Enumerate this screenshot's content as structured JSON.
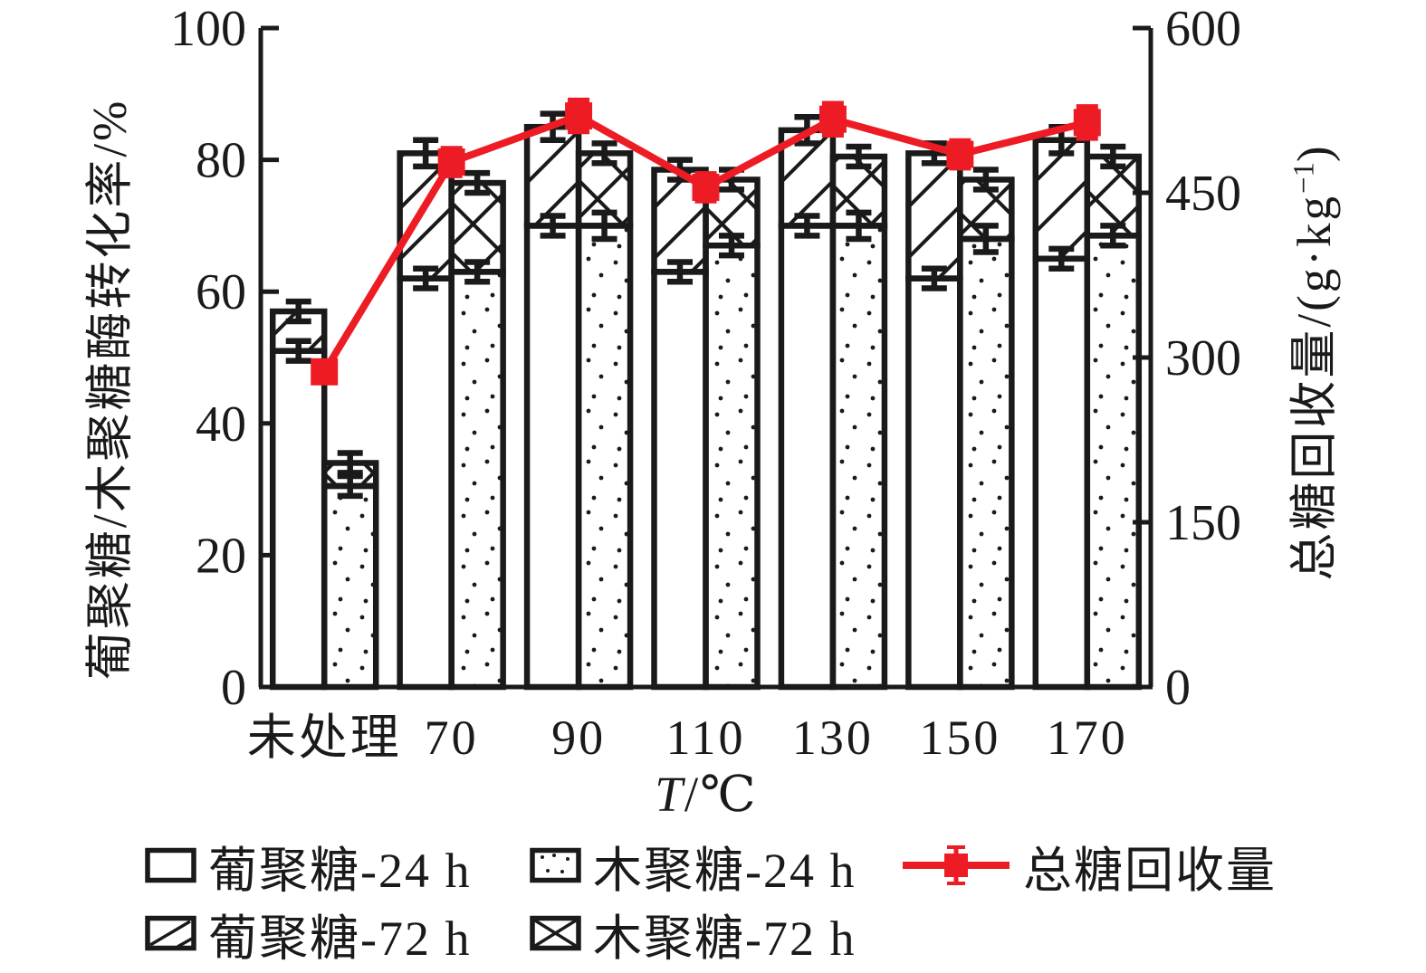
{
  "figure": {
    "background": "#ffffff",
    "ink": "#1a1a1a",
    "accent_red": "#ed1c24"
  },
  "axes": {
    "left_title": "葡聚糖/木聚糖酶转化率/%",
    "left_ticks": [
      0,
      20,
      40,
      60,
      80,
      100
    ],
    "left_range": [
      0,
      100
    ],
    "right_title_prefix": "总糖回收量/(g·kg",
    "right_title_sup": "−1",
    "right_title_suffix": ")",
    "right_ticks": [
      0,
      150,
      300,
      450,
      600
    ],
    "right_range": [
      0,
      600
    ],
    "x_title_var": "T",
    "x_title_rest": "/℃"
  },
  "chart_data": {
    "type": "bar+line",
    "categories": [
      "未处理",
      "70",
      "90",
      "110",
      "130",
      "150",
      "170"
    ],
    "xlabel": "T/℃",
    "ylabel_left": "葡聚糖/木聚糖酶转化率/%",
    "ylabel_right": "总糖回收量/(g·kg−1)",
    "grid": false,
    "legend_position": "bottom",
    "bars": [
      {
        "key": "glucan_24h",
        "name": "葡聚糖-24 h",
        "pattern": "plain",
        "values": [
          51,
          62,
          70,
          63,
          70,
          62,
          65
        ],
        "errors": [
          1.5,
          1.5,
          1.5,
          1.5,
          1.5,
          1.5,
          1.5
        ]
      },
      {
        "key": "glucan_72h",
        "name": "葡聚糖-72 h",
        "pattern": "diag",
        "stacked_on": "glucan_24h",
        "stack_totals": [
          57,
          81,
          85,
          78.5,
          84.5,
          81,
          83
        ],
        "errors": [
          1.5,
          2,
          2,
          1.5,
          2,
          1.5,
          2
        ]
      },
      {
        "key": "xylan_24h",
        "name": "木聚糖-24 h",
        "pattern": "dots",
        "values": [
          30.5,
          63,
          70,
          67,
          70,
          68,
          68.5
        ],
        "errors": [
          1.5,
          1.5,
          2,
          1.5,
          2,
          2,
          1.5
        ]
      },
      {
        "key": "xylan_72h",
        "name": "木聚糖-72 h",
        "pattern": "cross",
        "stacked_on": "xylan_24h",
        "stack_totals": [
          34,
          76.5,
          81,
          77,
          80.5,
          77,
          80.5
        ],
        "errors": [
          1.5,
          1.5,
          1.5,
          1.5,
          1.5,
          1.5,
          1.5
        ]
      }
    ],
    "line": {
      "name": "总糖回收量",
      "axis": "right",
      "color": "#ed1c24",
      "values": [
        287,
        478,
        520,
        455,
        517,
        485,
        514
      ],
      "errors": [
        8,
        12,
        14,
        12,
        14,
        12,
        14
      ]
    }
  },
  "legend": {
    "row1": [
      {
        "label": "葡聚糖-24 h",
        "swatch": "plain"
      },
      {
        "label": "木聚糖-24 h",
        "swatch": "dots"
      },
      {
        "label": "总糖回收量",
        "swatch": "red-line"
      }
    ],
    "row2": [
      {
        "label": "葡聚糖-72 h",
        "swatch": "diag"
      },
      {
        "label": "木聚糖-72 h",
        "swatch": "cross"
      }
    ]
  }
}
